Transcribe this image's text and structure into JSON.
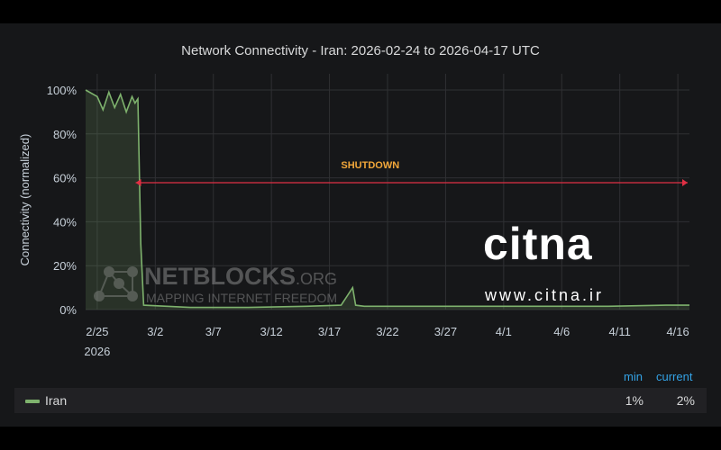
{
  "title": "Network Connectivity - Iran: 2026-02-24 to 2026-04-17 UTC",
  "legend": {
    "min_header": "min",
    "current_header": "current",
    "series_name": "Iran",
    "min_value": "1%",
    "current_value": "2%"
  },
  "watermarks": {
    "netblocks_name": "NETBLOCKS",
    "netblocks_suffix": ".ORG",
    "netblocks_tagline": "MAPPING INTERNET FREEDOM",
    "citna_logo": "citna",
    "citna_url": "www.citna.ir"
  },
  "colors": {
    "series": "#7eb26d",
    "annotation": "#e02f44",
    "annotation_text": "#f2a73a",
    "legend_header": "#33a2e5",
    "panel_bg": "#161719"
  },
  "chart_data": {
    "type": "area",
    "title": "Network Connectivity - Iran: 2026-02-24 to 2026-04-17 UTC",
    "ylabel": "Connectivity (normalized)",
    "xlabel": "",
    "ylim": [
      0,
      100
    ],
    "yticks": [
      0,
      20,
      40,
      60,
      80,
      100
    ],
    "ytick_labels": [
      "0%",
      "20%",
      "40%",
      "60%",
      "80%",
      "100%"
    ],
    "xlim": [
      "2026-02-24",
      "2026-04-17"
    ],
    "xticks": [
      "2026-02-25",
      "2026-03-02",
      "2026-03-07",
      "2026-03-12",
      "2026-03-17",
      "2026-03-22",
      "2026-03-27",
      "2026-04-01",
      "2026-04-06",
      "2026-04-11",
      "2026-04-16"
    ],
    "xtick_labels": [
      "2/25",
      "3/2",
      "3/7",
      "3/12",
      "3/17",
      "3/22",
      "3/27",
      "4/1",
      "4/6",
      "4/11",
      "4/16"
    ],
    "xtick_year": "2026",
    "grid": true,
    "legend_placement": "bottom",
    "series": [
      {
        "name": "Iran",
        "x": [
          "2026-02-24",
          "2026-02-25",
          "2026-02-25T12",
          "2026-02-26",
          "2026-02-26T12",
          "2026-02-27",
          "2026-02-27T12",
          "2026-02-28",
          "2026-02-28T06",
          "2026-02-28T12",
          "2026-02-28T18",
          "2026-03-01",
          "2026-03-05",
          "2026-03-10",
          "2026-03-15",
          "2026-03-18",
          "2026-03-19",
          "2026-03-19T06",
          "2026-03-20",
          "2026-03-25",
          "2026-03-30",
          "2026-04-05",
          "2026-04-10",
          "2026-04-15",
          "2026-04-17"
        ],
        "values": [
          100,
          97,
          91,
          99,
          92,
          98,
          90,
          97,
          94,
          96,
          30,
          2,
          1,
          1,
          1.5,
          2,
          10,
          2,
          1.5,
          1.5,
          1.5,
          1.5,
          1.5,
          2,
          2
        ]
      }
    ],
    "annotations": [
      {
        "label": "SHUTDOWN",
        "x_start": "2026-02-28",
        "x_end": "2026-04-17"
      }
    ]
  }
}
